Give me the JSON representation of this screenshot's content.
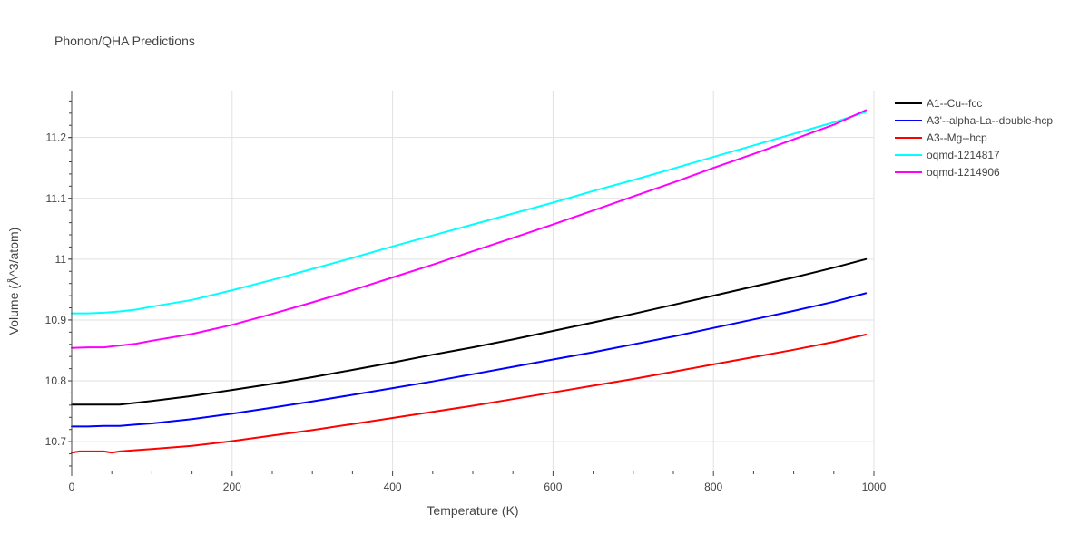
{
  "chart_data": {
    "type": "line",
    "title": "Phonon/QHA Predictions",
    "xlabel": "Temperature (K)",
    "ylabel": "Volume (Å^3/atom)",
    "xlim": [
      0,
      1000
    ],
    "ylim": [
      10.651,
      11.277
    ],
    "xticks": [
      0,
      200,
      400,
      600,
      800,
      1000
    ],
    "xtick_labels": [
      "0",
      "200",
      "400",
      "600",
      "800",
      "1000"
    ],
    "yticks": [
      10.7,
      10.8,
      10.9,
      11.0,
      11.1,
      11.2
    ],
    "ytick_labels": [
      "10.7",
      "10.8",
      "10.9",
      "11",
      "11.1",
      "11.2"
    ],
    "grid": true,
    "legend_position": "top-right, outside plot",
    "series": [
      {
        "name": "A1--Cu--fcc",
        "color": "#000000",
        "x": [
          0,
          20,
          40,
          60,
          80,
          100,
          150,
          200,
          250,
          300,
          350,
          400,
          450,
          500,
          550,
          600,
          650,
          700,
          750,
          800,
          850,
          900,
          950,
          990
        ],
        "y": [
          10.761,
          10.761,
          10.761,
          10.761,
          10.764,
          10.767,
          10.775,
          10.785,
          10.795,
          10.806,
          10.818,
          10.83,
          10.843,
          10.855,
          10.868,
          10.882,
          10.896,
          10.91,
          10.925,
          10.94,
          10.955,
          10.97,
          10.986,
          11.0
        ]
      },
      {
        "name": "A3'--alpha-La--double-hcp",
        "color": "#0000ff",
        "x": [
          0,
          20,
          40,
          60,
          80,
          100,
          150,
          200,
          250,
          300,
          350,
          400,
          450,
          500,
          550,
          600,
          650,
          700,
          750,
          800,
          850,
          900,
          950,
          990
        ],
        "y": [
          10.725,
          10.725,
          10.726,
          10.726,
          10.728,
          10.73,
          10.737,
          10.746,
          10.756,
          10.766,
          10.777,
          10.788,
          10.799,
          10.811,
          10.823,
          10.835,
          10.847,
          10.86,
          10.873,
          10.887,
          10.901,
          10.915,
          10.93,
          10.944
        ]
      },
      {
        "name": "A3--Mg--hcp",
        "color": "#ff0000",
        "x": [
          0,
          10,
          20,
          30,
          40,
          50,
          60,
          80,
          100,
          150,
          200,
          250,
          300,
          350,
          400,
          450,
          500,
          550,
          600,
          650,
          700,
          750,
          800,
          850,
          900,
          950,
          990
        ],
        "y": [
          10.682,
          10.684,
          10.684,
          10.684,
          10.684,
          10.682,
          10.684,
          10.686,
          10.688,
          10.693,
          10.701,
          10.71,
          10.719,
          10.729,
          10.739,
          10.749,
          10.759,
          10.77,
          10.781,
          10.792,
          10.803,
          10.815,
          10.827,
          10.839,
          10.851,
          10.864,
          10.876
        ]
      },
      {
        "name": "oqmd-1214817",
        "color": "#00ffff",
        "x": [
          0,
          20,
          40,
          60,
          80,
          100,
          150,
          200,
          250,
          300,
          350,
          400,
          450,
          500,
          550,
          600,
          650,
          700,
          750,
          800,
          850,
          900,
          950,
          990
        ],
        "y": [
          10.911,
          10.911,
          10.912,
          10.914,
          10.917,
          10.922,
          10.933,
          10.949,
          10.966,
          10.984,
          11.002,
          11.021,
          11.039,
          11.057,
          11.075,
          11.093,
          11.112,
          11.13,
          11.149,
          11.168,
          11.187,
          11.206,
          11.225,
          11.242
        ]
      },
      {
        "name": "oqmd-1214906",
        "color": "#ff00ff",
        "x": [
          0,
          20,
          40,
          60,
          80,
          100,
          150,
          200,
          250,
          300,
          350,
          400,
          450,
          500,
          550,
          600,
          650,
          700,
          750,
          800,
          850,
          900,
          950,
          990
        ],
        "y": [
          10.854,
          10.855,
          10.855,
          10.858,
          10.861,
          10.866,
          10.877,
          10.892,
          10.91,
          10.929,
          10.949,
          10.97,
          10.991,
          11.013,
          11.035,
          11.057,
          11.08,
          11.103,
          11.126,
          11.15,
          11.173,
          11.197,
          11.221,
          11.245
        ]
      }
    ]
  }
}
